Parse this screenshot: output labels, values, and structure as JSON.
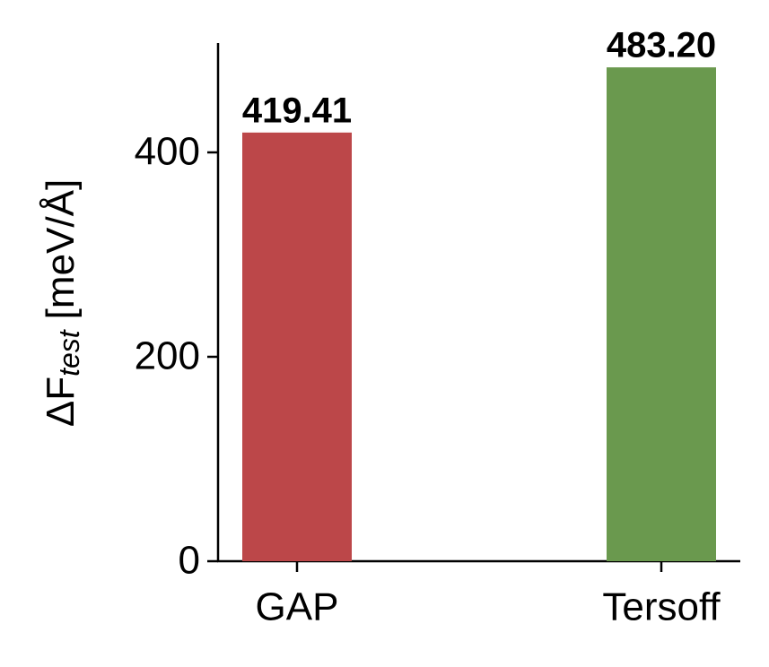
{
  "chart_data": {
    "type": "bar",
    "ylabel": {
      "main": "ΔF",
      "sub": "test",
      "unit": "[meV/Å]"
    },
    "categories": [
      "GAP",
      "Tersoff"
    ],
    "values": [
      419.41,
      483.2
    ],
    "value_labels": [
      "419.41",
      "483.20"
    ],
    "colors": [
      "#bc4749",
      "#6a994e"
    ],
    "ylim": [
      0,
      507
    ],
    "yticks": [
      0,
      200,
      400
    ],
    "grid": false
  }
}
